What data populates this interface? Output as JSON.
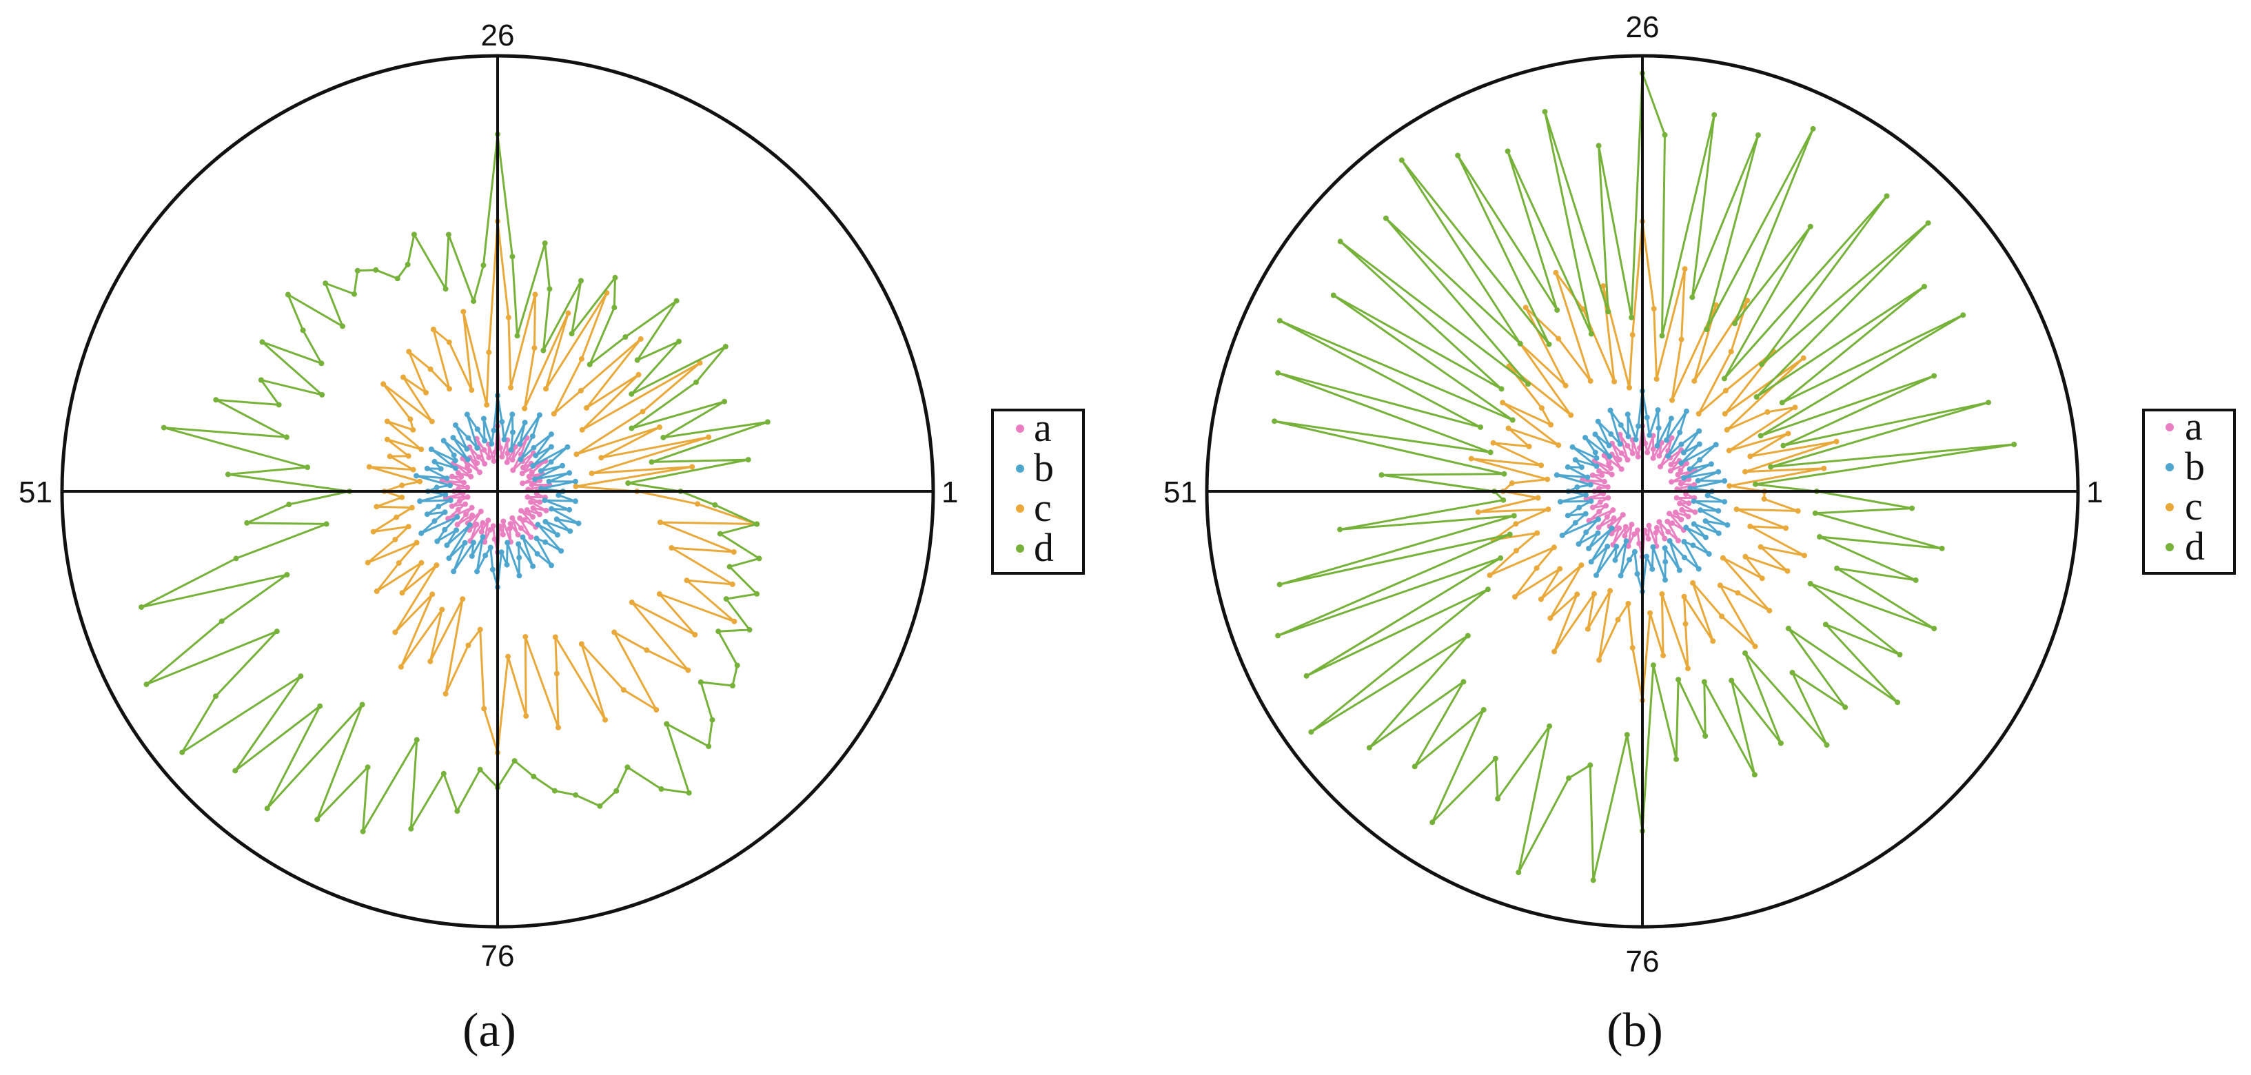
{
  "chart_data": [
    {
      "type": "radar",
      "panel_label": "(a)",
      "angular_ticks": [
        "26",
        "51",
        "76",
        "1"
      ],
      "legend": [
        "a",
        "b",
        "c",
        "d"
      ],
      "legend_placement": "right",
      "grid": "cross axes only",
      "rlim": [
        0,
        1
      ],
      "theta": "index 1..100 counterclockwise from 0°",
      "series": [
        {
          "name": "a",
          "color": "#e97fc0",
          "values": [
            0.09,
            0.07,
            0.12,
            0.08,
            0.1,
            0.06,
            0.11,
            0.08,
            0.09,
            0.13,
            0.07,
            0.1,
            0.08,
            0.12,
            0.09,
            0.06,
            0.1,
            0.14,
            0.08,
            0.11,
            0.07,
            0.09,
            0.12,
            0.08,
            0.1,
            0.15,
            0.09,
            0.07,
            0.11,
            0.08,
            0.1,
            0.13,
            0.07,
            0.09,
            0.12,
            0.08,
            0.1,
            0.06,
            0.11,
            0.09,
            0.08,
            0.12,
            0.07,
            0.1,
            0.09,
            0.11,
            0.08,
            0.13,
            0.07,
            0.09,
            0.1,
            0.08,
            0.12,
            0.07,
            0.09,
            0.11,
            0.08,
            0.1,
            0.13,
            0.07,
            0.09,
            0.12,
            0.08,
            0.1,
            0.06,
            0.11,
            0.09,
            0.13,
            0.08,
            0.1,
            0.07,
            0.12,
            0.09,
            0.08,
            0.11,
            0.14,
            0.08,
            0.1,
            0.07,
            0.12,
            0.09,
            0.08,
            0.11,
            0.07,
            0.1,
            0.13,
            0.08,
            0.09,
            0.12,
            0.07,
            0.1,
            0.08,
            0.11,
            0.09,
            0.12,
            0.08,
            0.1,
            0.07,
            0.11,
            0.09
          ]
        },
        {
          "name": "b",
          "color": "#4ea6cf",
          "values": [
            0.15,
            0.1,
            0.18,
            0.12,
            0.17,
            0.09,
            0.16,
            0.11,
            0.14,
            0.19,
            0.1,
            0.16,
            0.12,
            0.18,
            0.13,
            0.09,
            0.15,
            0.2,
            0.12,
            0.17,
            0.1,
            0.14,
            0.18,
            0.12,
            0.16,
            0.22,
            0.14,
            0.11,
            0.17,
            0.12,
            0.15,
            0.19,
            0.11,
            0.14,
            0.18,
            0.12,
            0.16,
            0.1,
            0.17,
            0.13,
            0.12,
            0.18,
            0.11,
            0.16,
            0.14,
            0.17,
            0.12,
            0.19,
            0.11,
            0.14,
            0.16,
            0.12,
            0.18,
            0.11,
            0.14,
            0.17,
            0.13,
            0.16,
            0.2,
            0.11,
            0.15,
            0.18,
            0.13,
            0.17,
            0.1,
            0.19,
            0.14,
            0.21,
            0.13,
            0.16,
            0.11,
            0.19,
            0.15,
            0.13,
            0.18,
            0.22,
            0.14,
            0.17,
            0.12,
            0.2,
            0.16,
            0.13,
            0.19,
            0.12,
            0.17,
            0.21,
            0.14,
            0.16,
            0.2,
            0.12,
            0.17,
            0.13,
            0.19,
            0.15,
            0.2,
            0.13,
            0.17,
            0.11,
            0.18,
            0.14
          ]
        },
        {
          "name": "c",
          "color": "#e8a93a",
          "values": [
            0.32,
            0.18,
            0.45,
            0.22,
            0.5,
            0.25,
            0.4,
            0.2,
            0.38,
            0.55,
            0.24,
            0.42,
            0.28,
            0.48,
            0.3,
            0.22,
            0.36,
            0.52,
            0.26,
            0.44,
            0.2,
            0.34,
            0.46,
            0.24,
            0.4,
            0.62,
            0.32,
            0.2,
            0.42,
            0.24,
            0.36,
            0.4,
            0.26,
            0.32,
            0.38,
            0.28,
            0.34,
            0.22,
            0.36,
            0.26,
            0.24,
            0.3,
            0.2,
            0.28,
            0.22,
            0.26,
            0.2,
            0.3,
            0.18,
            0.22,
            0.26,
            0.22,
            0.28,
            0.2,
            0.24,
            0.3,
            0.22,
            0.26,
            0.34,
            0.22,
            0.28,
            0.36,
            0.24,
            0.32,
            0.22,
            0.4,
            0.28,
            0.46,
            0.3,
            0.42,
            0.26,
            0.48,
            0.36,
            0.32,
            0.5,
            0.6,
            0.38,
            0.52,
            0.34,
            0.56,
            0.44,
            0.36,
            0.58,
            0.4,
            0.54,
            0.62,
            0.42,
            0.5,
            0.6,
            0.4,
            0.56,
            0.44,
            0.62,
            0.48,
            0.58,
            0.42,
            0.56,
            0.38,
            0.6,
            0.46
          ]
        },
        {
          "name": "d",
          "color": "#76b13a",
          "values": [
            0.42,
            0.3,
            0.58,
            0.36,
            0.64,
            0.4,
            0.56,
            0.34,
            0.52,
            0.62,
            0.38,
            0.54,
            0.44,
            0.6,
            0.46,
            0.36,
            0.5,
            0.56,
            0.4,
            0.52,
            0.34,
            0.48,
            0.58,
            0.36,
            0.54,
            0.82,
            0.52,
            0.44,
            0.6,
            0.48,
            0.62,
            0.56,
            0.54,
            0.58,
            0.6,
            0.56,
            0.62,
            0.52,
            0.66,
            0.58,
            0.5,
            0.64,
            0.46,
            0.6,
            0.54,
            0.68,
            0.5,
            0.78,
            0.44,
            0.62,
            0.34,
            0.48,
            0.58,
            0.4,
            0.62,
            0.86,
            0.52,
            0.7,
            0.92,
            0.6,
            0.8,
            0.94,
            0.62,
            0.88,
            0.64,
            0.9,
            0.58,
            0.86,
            0.7,
            0.84,
            0.6,
            0.8,
            0.66,
            0.74,
            0.64,
            0.68,
            0.62,
            0.66,
            0.7,
            0.72,
            0.76,
            0.74,
            0.7,
            0.78,
            0.82,
            0.66,
            0.76,
            0.72,
            0.64,
            0.7,
            0.68,
            0.6,
            0.66,
            0.58,
            0.64,
            0.56,
            0.62,
            0.52,
            0.6,
            0.5
          ]
        }
      ]
    },
    {
      "type": "radar",
      "panel_label": "(b)",
      "angular_ticks": [
        "26",
        "51",
        "76",
        "1"
      ],
      "legend": [
        "a",
        "b",
        "c",
        "d"
      ],
      "legend_placement": "right",
      "grid": "cross axes only",
      "rlim": [
        0,
        1
      ],
      "theta": "index 1..100 counterclockwise from 0°",
      "series": [
        {
          "name": "a",
          "color": "#e97fc0",
          "values": [
            0.1,
            0.08,
            0.12,
            0.09,
            0.11,
            0.07,
            0.13,
            0.09,
            0.1,
            0.12,
            0.08,
            0.11,
            0.09,
            0.13,
            0.1,
            0.07,
            0.11,
            0.14,
            0.09,
            0.12,
            0.08,
            0.1,
            0.13,
            0.09,
            0.11,
            0.15,
            0.1,
            0.08,
            0.12,
            0.09,
            0.11,
            0.14,
            0.08,
            0.1,
            0.13,
            0.09,
            0.11,
            0.07,
            0.12,
            0.1,
            0.09,
            0.13,
            0.08,
            0.11,
            0.1,
            0.12,
            0.09,
            0.14,
            0.08,
            0.1,
            0.11,
            0.09,
            0.13,
            0.08,
            0.1,
            0.12,
            0.09,
            0.11,
            0.14,
            0.08,
            0.1,
            0.13,
            0.09,
            0.11,
            0.07,
            0.12,
            0.1,
            0.14,
            0.09,
            0.11,
            0.08,
            0.13,
            0.1,
            0.09,
            0.12,
            0.15,
            0.09,
            0.11,
            0.08,
            0.13,
            0.1,
            0.09,
            0.12,
            0.08,
            0.11,
            0.14,
            0.09,
            0.1,
            0.13,
            0.08,
            0.11,
            0.09,
            0.12,
            0.1,
            0.13,
            0.09,
            0.11,
            0.08,
            0.12,
            0.1
          ]
        },
        {
          "name": "b",
          "color": "#4ea6cf",
          "values": [
            0.16,
            0.11,
            0.19,
            0.13,
            0.18,
            0.1,
            0.17,
            0.12,
            0.15,
            0.2,
            0.11,
            0.17,
            0.13,
            0.19,
            0.14,
            0.1,
            0.16,
            0.21,
            0.13,
            0.18,
            0.11,
            0.15,
            0.19,
            0.13,
            0.17,
            0.23,
            0.15,
            0.12,
            0.18,
            0.13,
            0.16,
            0.2,
            0.12,
            0.15,
            0.19,
            0.13,
            0.17,
            0.11,
            0.18,
            0.14,
            0.13,
            0.19,
            0.12,
            0.17,
            0.15,
            0.18,
            0.13,
            0.2,
            0.12,
            0.15,
            0.17,
            0.13,
            0.19,
            0.12,
            0.15,
            0.18,
            0.14,
            0.17,
            0.21,
            0.12,
            0.16,
            0.19,
            0.14,
            0.18,
            0.11,
            0.2,
            0.15,
            0.22,
            0.14,
            0.17,
            0.12,
            0.2,
            0.16,
            0.14,
            0.19,
            0.23,
            0.15,
            0.18,
            0.13,
            0.21,
            0.17,
            0.14,
            0.2,
            0.13,
            0.18,
            0.22,
            0.15,
            0.17,
            0.21,
            0.13,
            0.18,
            0.14,
            0.2,
            0.16,
            0.21,
            0.14,
            0.18,
            0.12,
            0.19,
            0.15
          ]
        },
        {
          "name": "c",
          "color": "#e8a93a",
          "values": [
            0.28,
            0.2,
            0.42,
            0.24,
            0.46,
            0.26,
            0.36,
            0.22,
            0.4,
            0.34,
            0.24,
            0.48,
            0.26,
            0.44,
            0.3,
            0.22,
            0.38,
            0.5,
            0.28,
            0.46,
            0.22,
            0.36,
            0.52,
            0.26,
            0.42,
            0.62,
            0.36,
            0.24,
            0.48,
            0.26,
            0.44,
            0.54,
            0.28,
            0.4,
            0.5,
            0.3,
            0.44,
            0.24,
            0.42,
            0.3,
            0.26,
            0.38,
            0.22,
            0.34,
            0.28,
            0.36,
            0.24,
            0.4,
            0.22,
            0.3,
            0.32,
            0.24,
            0.38,
            0.22,
            0.3,
            0.36,
            0.26,
            0.32,
            0.4,
            0.24,
            0.3,
            0.38,
            0.26,
            0.34,
            0.22,
            0.36,
            0.28,
            0.42,
            0.26,
            0.34,
            0.24,
            0.4,
            0.3,
            0.26,
            0.36,
            0.48,
            0.28,
            0.38,
            0.24,
            0.42,
            0.32,
            0.26,
            0.38,
            0.24,
            0.34,
            0.44,
            0.28,
            0.32,
            0.4,
            0.24,
            0.34,
            0.28,
            0.38,
            0.3,
            0.4,
            0.26,
            0.34,
            0.22,
            0.36,
            0.28
          ]
        },
        {
          "name": "d",
          "color": "#76b13a",
          "values": [
            0.4,
            0.26,
            0.86,
            0.3,
            0.82,
            0.34,
            0.72,
            0.3,
            0.84,
            0.38,
            0.8,
            0.34,
            0.9,
            0.4,
            0.88,
            0.32,
            0.72,
            0.44,
            0.92,
            0.4,
            0.86,
            0.46,
            0.88,
            0.36,
            0.82,
            0.96,
            0.4,
            0.8,
            0.42,
            0.9,
            0.38,
            0.84,
            0.46,
            0.88,
            0.4,
            0.94,
            0.44,
            0.86,
            0.36,
            0.9,
            0.4,
            0.84,
            0.34,
            0.92,
            0.4,
            0.88,
            0.36,
            0.86,
            0.32,
            0.6,
            0.34,
            0.32,
            0.7,
            0.3,
            0.86,
            0.32,
            0.9,
            0.36,
            0.88,
            0.42,
            0.94,
            0.52,
            0.86,
            0.6,
            0.82,
            0.62,
            0.9,
            0.7,
            0.78,
            0.58,
            0.92,
            0.68,
            0.64,
            0.9,
            0.56,
            0.78,
            0.4,
            0.62,
            0.44,
            0.58,
            0.46,
            0.7,
            0.48,
            0.66,
            0.44,
            0.72,
            0.54,
            0.68,
            0.46,
            0.76,
            0.52,
            0.7,
            0.44,
            0.74,
            0.48,
            0.66,
            0.42,
            0.7,
            0.4,
            0.62
          ]
        }
      ]
    }
  ]
}
